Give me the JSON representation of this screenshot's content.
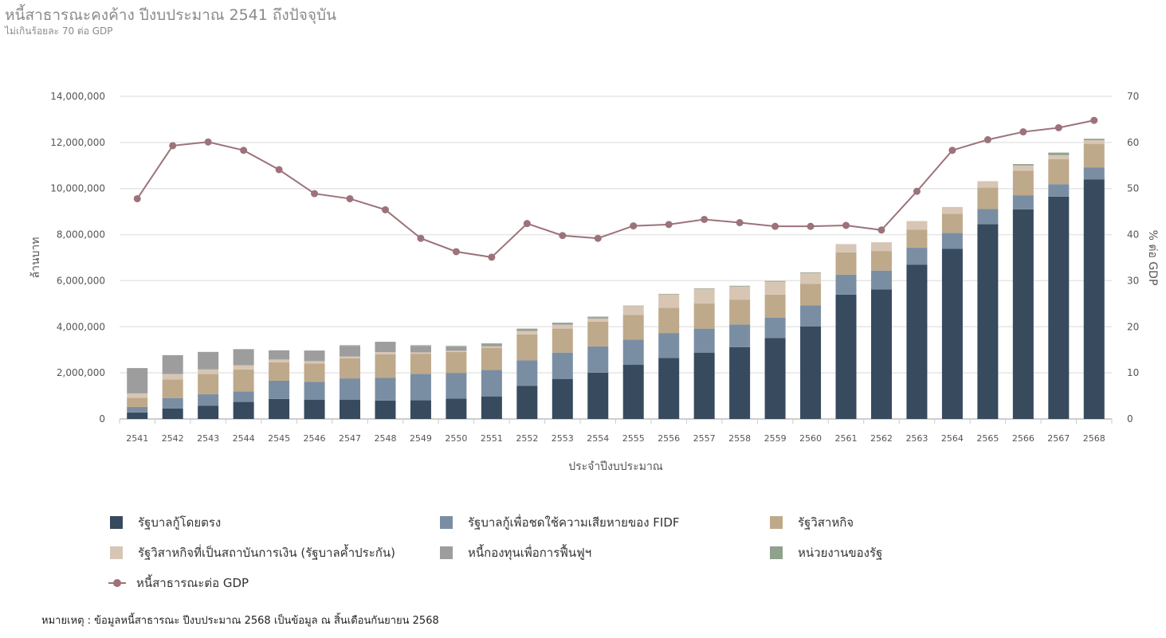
{
  "title": "หนี้สาธารณะคงค้าง ปีงบประมาณ 2541 ถึงปัจจุบัน",
  "subtitle": "ไม่เกินร้อยละ 70 ต่อ GDP",
  "note": "หมายเหตุ : ข้อมูลหนี้สาธารณะ ปีงบประมาณ 2568 เป็นข้อมูล ณ สิ้นเดือนกันยายน 2568",
  "chart_data": {
    "type": "bar",
    "stacked": true,
    "xlabel": "ประจำปีงบประมาณ",
    "ylabel": "ล้านบาท",
    "ylabel_right": "% ต่อ GDP",
    "ylim": [
      0,
      14000000
    ],
    "ylim_right": [
      0,
      70
    ],
    "yticks": [
      0,
      2000000,
      4000000,
      6000000,
      8000000,
      10000000,
      12000000,
      14000000
    ],
    "ytick_labels": [
      "0",
      "2,000,000",
      "4,000,000",
      "6,000,000",
      "8,000,000",
      "10,000,000",
      "12,000,000",
      "14,000,000"
    ],
    "yticks_right": [
      "0",
      "10",
      "20",
      "30",
      "40",
      "50",
      "60",
      "70"
    ],
    "grid": true,
    "legend_position": "bottom",
    "categories": [
      "2541",
      "2542",
      "2543",
      "2544",
      "2545",
      "2546",
      "2547",
      "2548",
      "2549",
      "2550",
      "2551",
      "2552",
      "2553",
      "2554",
      "2555",
      "2556",
      "2557",
      "2558",
      "2559",
      "2560",
      "2561",
      "2562",
      "2563",
      "2564",
      "2565",
      "2566",
      "2567",
      "2568"
    ],
    "series": [
      {
        "name": "รัฐบาลกู้โดยตรง",
        "color": "#374a5e",
        "values": [
          280000,
          450000,
          570000,
          740000,
          870000,
          840000,
          840000,
          800000,
          810000,
          880000,
          980000,
          1440000,
          1740000,
          2010000,
          2350000,
          2650000,
          2880000,
          3120000,
          3510000,
          4020000,
          5400000,
          5620000,
          6700000,
          7380000,
          8450000,
          9100000,
          9650000,
          10400000
        ]
      },
      {
        "name": "รัฐบาลกู้เพื่อชดใช้ความเสียหายของ FIDF",
        "color": "#7a8ea3",
        "values": [
          240000,
          460000,
          500000,
          460000,
          790000,
          770000,
          920000,
          980000,
          1150000,
          1120000,
          1150000,
          1110000,
          1140000,
          1140000,
          1100000,
          1080000,
          1040000,
          980000,
          880000,
          910000,
          860000,
          820000,
          730000,
          700000,
          660000,
          610000,
          540000,
          520000
        ]
      },
      {
        "name": "รัฐวิสาหกิจ",
        "color": "#bfa98b",
        "values": [
          400000,
          800000,
          880000,
          950000,
          800000,
          800000,
          870000,
          1020000,
          870000,
          910000,
          960000,
          1120000,
          1040000,
          1070000,
          1070000,
          1100000,
          1090000,
          1080000,
          1010000,
          930000,
          970000,
          850000,
          780000,
          830000,
          930000,
          1060000,
          1080000,
          1020000
        ]
      },
      {
        "name": "รัฐวิสาหกิจที่เป็นสถาบันการเงิน (รัฐบาลค้ำประกัน)",
        "color": "#d7c6b4",
        "values": [
          190000,
          240000,
          200000,
          180000,
          120000,
          100000,
          80000,
          100000,
          60000,
          50000,
          60000,
          150000,
          170000,
          140000,
          380000,
          580000,
          640000,
          570000,
          560000,
          470000,
          360000,
          380000,
          380000,
          290000,
          280000,
          230000,
          180000,
          160000
        ]
      },
      {
        "name": "หนี้กองทุนเพื่อการฟื้นฟูฯ",
        "color": "#9d9d9d",
        "values": [
          1100000,
          820000,
          760000,
          700000,
          400000,
          460000,
          460000,
          420000,
          280000,
          180000,
          100000,
          70000,
          60000,
          50000,
          0,
          0,
          0,
          0,
          0,
          0,
          0,
          0,
          0,
          0,
          0,
          0,
          0,
          0
        ]
      },
      {
        "name": "หน่วยงานของรัฐ",
        "color": "#8fa28c",
        "values": [
          0,
          0,
          0,
          0,
          0,
          0,
          30000,
          30000,
          30000,
          30000,
          30000,
          30000,
          30000,
          30000,
          20000,
          20000,
          20000,
          30000,
          30000,
          30000,
          0,
          0,
          0,
          0,
          0,
          60000,
          110000,
          60000
        ]
      }
    ],
    "line_series": {
      "name": "หนี้สาธารณะต่อ GDP",
      "color": "#9c737a",
      "axis": "right",
      "values": [
        47.8,
        59.3,
        60.1,
        58.3,
        54.1,
        48.9,
        47.8,
        45.4,
        39.2,
        36.3,
        35.1,
        42.4,
        39.8,
        39.2,
        41.9,
        42.2,
        43.3,
        42.6,
        41.8,
        41.8,
        42.0,
        41.0,
        49.4,
        58.3,
        60.6,
        62.3,
        63.2,
        64.8
      ]
    }
  }
}
